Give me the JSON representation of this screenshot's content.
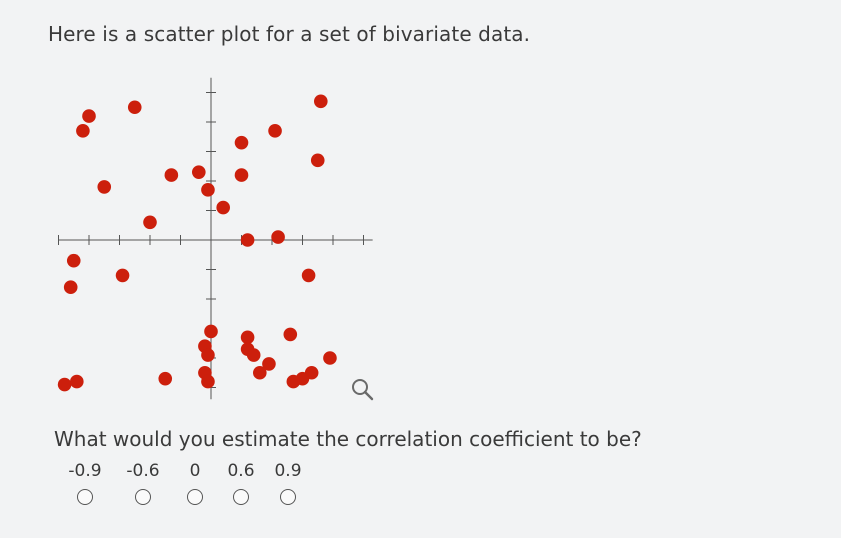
{
  "prompt": "Here is a scatter plot for a set of bivariate data.",
  "question": "What would you estimate the correlation coefficient to be?",
  "choices": [
    {
      "label": "-0.9"
    },
    {
      "label": "-0.6"
    },
    {
      "label": "0"
    },
    {
      "label": "0.6"
    },
    {
      "label": "0.9"
    }
  ],
  "zoom_icon": "magnifier-icon",
  "colors": {
    "point": "#cc1f0c",
    "axis": "#555555",
    "background": "#f2f3f4"
  },
  "chart_data": {
    "type": "scatter",
    "title": "",
    "xlabel": "",
    "ylabel": "",
    "grid": false,
    "xlim": [
      -5,
      5.5
    ],
    "ylim": [
      -5.5,
      5.5
    ],
    "xticks": [
      -5,
      -4,
      -3,
      -2,
      -1,
      0,
      1,
      2,
      3,
      4,
      5
    ],
    "yticks": [
      -5,
      -4,
      -3,
      -2,
      -1,
      0,
      1,
      2,
      3,
      4,
      5
    ],
    "points": [
      {
        "x": -4.0,
        "y": 4.2
      },
      {
        "x": -4.2,
        "y": 3.7
      },
      {
        "x": -2.5,
        "y": 4.5
      },
      {
        "x": -3.5,
        "y": 1.8
      },
      {
        "x": -2.0,
        "y": 0.6
      },
      {
        "x": -1.3,
        "y": 2.2
      },
      {
        "x": -0.4,
        "y": 2.3
      },
      {
        "x": -0.1,
        "y": 1.7
      },
      {
        "x": 0.4,
        "y": 1.1
      },
      {
        "x": 1.0,
        "y": 3.3
      },
      {
        "x": 1.0,
        "y": 2.2
      },
      {
        "x": 2.1,
        "y": 3.7
      },
      {
        "x": 3.6,
        "y": 4.7
      },
      {
        "x": 3.5,
        "y": 2.7
      },
      {
        "x": 1.2,
        "y": 0.0
      },
      {
        "x": 2.2,
        "y": 0.1
      },
      {
        "x": 3.2,
        "y": -1.2
      },
      {
        "x": -4.5,
        "y": -0.7
      },
      {
        "x": -4.6,
        "y": -1.6
      },
      {
        "x": -2.9,
        "y": -1.2
      },
      {
        "x": 0.0,
        "y": -3.1
      },
      {
        "x": -0.2,
        "y": -3.6
      },
      {
        "x": -0.1,
        "y": -3.9
      },
      {
        "x": 1.2,
        "y": -3.3
      },
      {
        "x": 1.2,
        "y": -3.7
      },
      {
        "x": 1.4,
        "y": -3.9
      },
      {
        "x": 2.6,
        "y": -3.2
      },
      {
        "x": 1.9,
        "y": -4.2
      },
      {
        "x": 1.6,
        "y": -4.5
      },
      {
        "x": 3.9,
        "y": -4.0
      },
      {
        "x": 3.3,
        "y": -4.5
      },
      {
        "x": 3.0,
        "y": -4.7
      },
      {
        "x": 2.7,
        "y": -4.8
      },
      {
        "x": -1.5,
        "y": -4.7
      },
      {
        "x": -0.2,
        "y": -4.5
      },
      {
        "x": -0.1,
        "y": -4.8
      },
      {
        "x": -4.8,
        "y": -4.9
      },
      {
        "x": -4.4,
        "y": -4.8
      }
    ]
  }
}
